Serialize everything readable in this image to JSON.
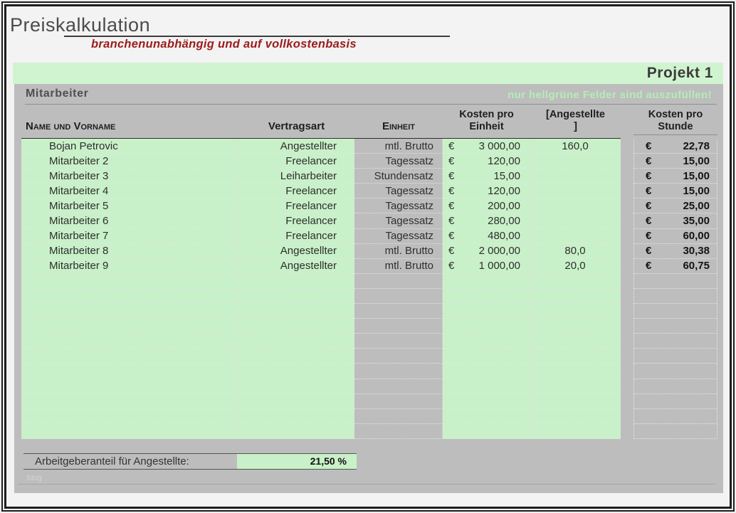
{
  "title": "Preiskalkulation",
  "subtitle": "branchenunabhängig und auf vollkostenbasis",
  "project": {
    "label": "Projekt 1"
  },
  "section": {
    "title": "Mitarbeiter",
    "hint": "nur hellgrüne Felder sind auszufüllen!"
  },
  "table": {
    "currency": "€",
    "columns": {
      "name": "Name und Vorname",
      "vertragsart": "Vertragsart",
      "einheit": "Einheit",
      "kosten_l1": "Kosten pro",
      "kosten_l2": "Einheit",
      "angestellte_l1": "[Angestellte",
      "angestellte_l2": "]",
      "stunde_l1": "Kosten pro",
      "stunde_l2": "Stunde"
    },
    "rows": [
      {
        "name": "Bojan Petrovic",
        "vertragsart": "Angestellter",
        "einheit": "mtl. Brutto",
        "kosten": "3 000,00",
        "angestellte": "160,0",
        "stunde": "22,78"
      },
      {
        "name": "Mitarbeiter 2",
        "vertragsart": "Freelancer",
        "einheit": "Tagessatz",
        "kosten": "120,00",
        "angestellte": "",
        "stunde": "15,00"
      },
      {
        "name": "Mitarbeiter 3",
        "vertragsart": "Leiharbeiter",
        "einheit": "Stundensatz",
        "kosten": "15,00",
        "angestellte": "",
        "stunde": "15,00"
      },
      {
        "name": "Mitarbeiter 4",
        "vertragsart": "Freelancer",
        "einheit": "Tagessatz",
        "kosten": "120,00",
        "angestellte": "",
        "stunde": "15,00"
      },
      {
        "name": "Mitarbeiter 5",
        "vertragsart": "Freelancer",
        "einheit": "Tagessatz",
        "kosten": "200,00",
        "angestellte": "",
        "stunde": "25,00"
      },
      {
        "name": "Mitarbeiter 6",
        "vertragsart": "Freelancer",
        "einheit": "Tagessatz",
        "kosten": "280,00",
        "angestellte": "",
        "stunde": "35,00"
      },
      {
        "name": "Mitarbeiter 7",
        "vertragsart": "Freelancer",
        "einheit": "Tagessatz",
        "kosten": "480,00",
        "angestellte": "",
        "stunde": "60,00"
      },
      {
        "name": "Mitarbeiter 8",
        "vertragsart": "Angestellter",
        "einheit": "mtl. Brutto",
        "kosten": "2 000,00",
        "angestellte": "80,0",
        "stunde": "30,38"
      },
      {
        "name": "Mitarbeiter 9",
        "vertragsart": "Angestellter",
        "einheit": "mtl. Brutto",
        "kosten": "1 000,00",
        "angestellte": "20,0",
        "stunde": "60,75"
      }
    ],
    "empty_row_count": 11
  },
  "footer": {
    "label": "Arbeitgeberanteil für Angestellte:",
    "value": "21,50 %",
    "watermark": "blog"
  },
  "colors": {
    "frame": "#1e1e1e",
    "content_bg": "#f3f3f3",
    "gray": "#bdbdbd",
    "green_band": "#d0f4d0",
    "green_cell": "#c9f1c9",
    "hint_green": "#b5ecb5",
    "accent_red": "#9c1b1b"
  }
}
